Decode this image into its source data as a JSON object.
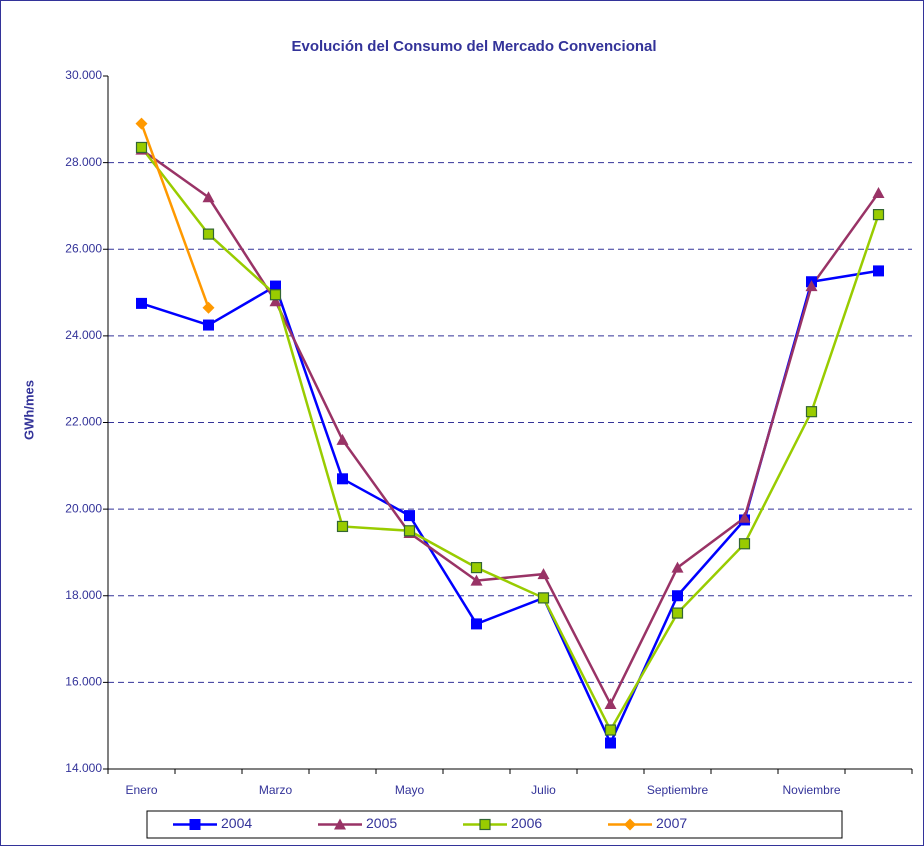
{
  "chart_data": {
    "type": "line",
    "title": "Evolución del Consumo del Mercado Convencional",
    "y_label": "GWh/mes",
    "categories": [
      "Enero",
      null,
      "Marzo",
      null,
      "Mayo",
      null,
      "Julio",
      null,
      "Septiembre",
      null,
      "Noviembre",
      null
    ],
    "ylim": [
      14000,
      30000
    ],
    "yticks": [
      {
        "value": 14000,
        "label": "14.000"
      },
      {
        "value": 16000,
        "label": "16.000"
      },
      {
        "value": 18000,
        "label": "18.000"
      },
      {
        "value": 20000,
        "label": "20.000"
      },
      {
        "value": 22000,
        "label": "22.000"
      },
      {
        "value": 24000,
        "label": "24.000"
      },
      {
        "value": 26000,
        "label": "26.000"
      },
      {
        "value": 28000,
        "label": "28.000"
      },
      {
        "value": 30000,
        "label": "30.000"
      }
    ],
    "grid": true,
    "legend": "bottom",
    "series": [
      {
        "name": "2004",
        "color": "#0000ff",
        "marker": "square",
        "values": [
          24750,
          24250,
          25150,
          20700,
          19850,
          17350,
          17950,
          14600,
          18000,
          19750,
          25250,
          25500
        ]
      },
      {
        "name": "2005",
        "color": "#993366",
        "marker": "triangle",
        "values": [
          28300,
          27200,
          24800,
          21600,
          19450,
          18350,
          18500,
          15500,
          18650,
          19800,
          25150,
          27300
        ]
      },
      {
        "name": "2006",
        "color": "#99cc00",
        "marker": "square-outlined",
        "values": [
          28350,
          26350,
          24950,
          19600,
          19500,
          18650,
          17950,
          14900,
          17600,
          19200,
          22250,
          26800
        ]
      },
      {
        "name": "2007",
        "color": "#ff9900",
        "marker": "diamond",
        "values": [
          28900,
          24650,
          null,
          null,
          null,
          null,
          null,
          null,
          null,
          null,
          null,
          null
        ]
      }
    ]
  }
}
